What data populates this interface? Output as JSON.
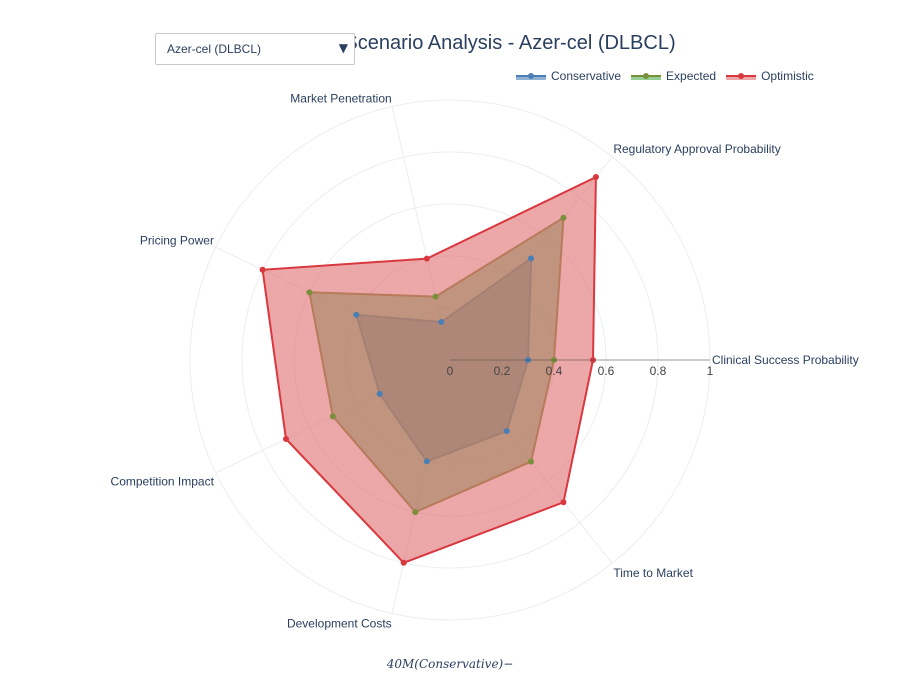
{
  "dropdown": {
    "selected": "Azer-cel (DLBCL)",
    "arrow_icon": "triangle-down-icon"
  },
  "footnote": "40M(Conservative)−",
  "chart_data": {
    "type": "radar",
    "title": "Scenario Analysis - Azer-cel (DLBCL)",
    "axes": [
      "Clinical Success Probability",
      "Regulatory Approval Probability",
      "Market Penetration",
      "Pricing Power",
      "Competition Impact",
      "Development Costs",
      "Time to Market"
    ],
    "radial_range": [
      0,
      1
    ],
    "radial_ticks": [
      "0",
      "0.2",
      "0.4",
      "0.6",
      "0.8",
      "1"
    ],
    "grid": true,
    "legend_position": "top-right",
    "series": [
      {
        "name": "Conservative",
        "color": "#4a7fb5",
        "fill": "#4a7fb5",
        "values": [
          0.3,
          0.5,
          0.15,
          0.4,
          0.3,
          0.4,
          0.35
        ]
      },
      {
        "name": "Expected",
        "color": "#7a8f3a",
        "fill": "#4caf50",
        "values": [
          0.4,
          0.7,
          0.25,
          0.6,
          0.5,
          0.6,
          0.5
        ]
      },
      {
        "name": "Optimistic",
        "color": "#d9383e",
        "fill": "#e06c70",
        "values": [
          0.55,
          0.9,
          0.4,
          0.8,
          0.7,
          0.8,
          0.7
        ]
      }
    ]
  }
}
